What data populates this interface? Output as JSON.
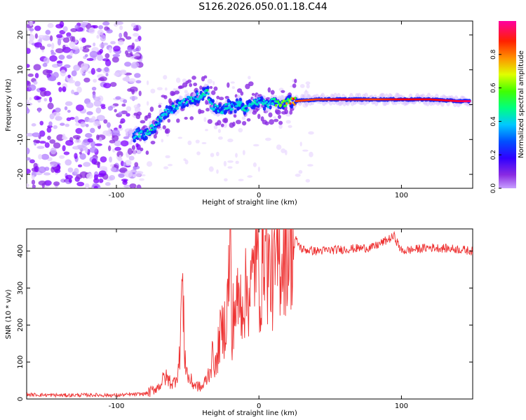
{
  "title": "S126.2026.050.01.18.C44",
  "chart_data": [
    {
      "type": "heatmap",
      "name": "spectrogram",
      "xlabel": "Height of straight line (km)",
      "ylabel": "Frequency (Hz)",
      "xlim": [
        -163,
        150
      ],
      "ylim": [
        -24,
        24
      ],
      "xticks": [
        -100,
        0,
        100
      ],
      "yticks": [
        -20,
        -10,
        0,
        10,
        20
      ],
      "colorbar": {
        "label": "Normalized spectral amplitude",
        "range": [
          0.0,
          1.0
        ],
        "ticks": [
          "0.0",
          "0.2",
          "0.4",
          "0.6",
          "0.8"
        ],
        "colors": [
          "#c8a0ff",
          "#7f00ff",
          "#0000ff",
          "#00c8ff",
          "#00ff80",
          "#40ff00",
          "#ffff00",
          "#ff8000",
          "#ff0000",
          "#ff00a0"
        ]
      },
      "ridge": {
        "x": [
          -88,
          -84,
          -80,
          -76,
          -72,
          -68,
          -64,
          -60,
          -56,
          -52,
          -48,
          -44,
          -40,
          -36,
          -34,
          -30,
          -26,
          -22,
          -18,
          -14,
          -10,
          -6,
          -2,
          2,
          6,
          10,
          14,
          18,
          22,
          26,
          40,
          60,
          80,
          100,
          120,
          140,
          148
        ],
        "freq": [
          -9,
          -8,
          -9,
          -7,
          -6,
          -3,
          -2,
          -1,
          0,
          1,
          1.5,
          2,
          3,
          4,
          0,
          -1,
          -2,
          0,
          -1,
          0.5,
          -1.5,
          0,
          1,
          0.5,
          0,
          1,
          0,
          0.5,
          1,
          1,
          1.5,
          1.5,
          1.5,
          1.5,
          1.5,
          1,
          1
        ],
        "amplitude": [
          0.3,
          0.35,
          0.3,
          0.35,
          0.3,
          0.35,
          0.3,
          0.35,
          0.3,
          0.3,
          0.35,
          0.3,
          0.35,
          0.4,
          0.3,
          0.3,
          0.3,
          0.35,
          0.3,
          0.3,
          0.35,
          0.3,
          0.35,
          0.3,
          0.3,
          0.4,
          0.5,
          0.55,
          0.65,
          0.8,
          0.8,
          0.85,
          0.8,
          0.85,
          0.85,
          0.9,
          0.95
        ]
      },
      "noise_region_x": [
        -163,
        -83
      ]
    },
    {
      "type": "line",
      "name": "snr",
      "xlabel": "Height of straight line (km)",
      "ylabel": "SNR (10 * v/v)",
      "xlim": [
        -163,
        150
      ],
      "ylim": [
        0,
        460
      ],
      "xticks": [
        -100,
        0,
        100
      ],
      "yticks": [
        0,
        100,
        200,
        300,
        400
      ],
      "color": "#ee3333",
      "series": {
        "x": [
          -163,
          -140,
          -120,
          -100,
          -90,
          -80,
          -76,
          -70,
          -66,
          -60,
          -56,
          -54,
          -52,
          -50,
          -46,
          -40,
          -36,
          -32,
          -30,
          -28,
          -24,
          -22,
          -20,
          -19,
          -18,
          -14,
          -10,
          -6,
          -4,
          -2,
          0,
          2,
          4,
          6,
          10,
          14,
          18,
          22,
          26,
          30,
          40,
          60,
          80,
          95,
          100,
          120,
          140,
          150
        ],
        "snr": [
          12,
          10,
          11,
          10,
          12,
          14,
          20,
          35,
          60,
          40,
          90,
          320,
          120,
          60,
          40,
          30,
          60,
          120,
          80,
          160,
          200,
          260,
          450,
          100,
          240,
          260,
          280,
          300,
          320,
          420,
          300,
          330,
          460,
          360,
          320,
          380,
          400,
          420,
          430,
          405,
          400,
          405,
          410,
          440,
          400,
          410,
          405,
          400
        ]
      }
    }
  ]
}
